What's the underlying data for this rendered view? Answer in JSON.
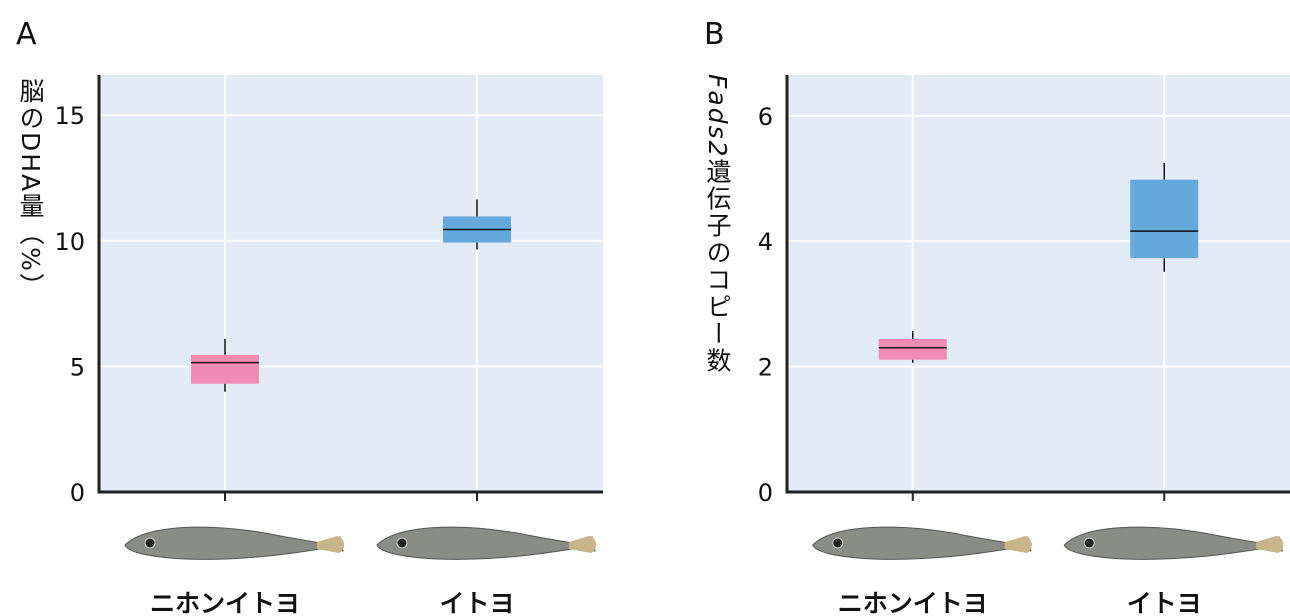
{
  "chart_data": [
    {
      "type": "box",
      "panel": "A",
      "y_label": "脳のDHA量（%）",
      "categories": [
        "ニホンイトヨ",
        "イトヨ"
      ],
      "colors": [
        "#f08cb4",
        "#64a8dc"
      ],
      "boxes": [
        {
          "min": 3.99,
          "q1": 4.31,
          "median": 5.15,
          "q3": 5.46,
          "max": 6.1
        },
        {
          "min": 9.65,
          "q1": 9.93,
          "median": 10.45,
          "q3": 10.97,
          "max": 11.65
        }
      ],
      "ylim": [
        0,
        16.6
      ],
      "yticks": [
        0,
        5,
        10,
        15
      ],
      "grid": true
    },
    {
      "type": "box",
      "panel": "B",
      "y_label_italic": "Fads2",
      "y_label": "遺伝子のコピー数",
      "categories": [
        "ニホンイトヨ",
        "イトヨ"
      ],
      "colors": [
        "#f08cb4",
        "#64a8dc"
      ],
      "boxes": [
        {
          "min": 2.06,
          "q1": 2.11,
          "median": 2.3,
          "q3": 2.44,
          "max": 2.57
        },
        {
          "min": 3.51,
          "q1": 3.73,
          "median": 4.16,
          "q3": 4.98,
          "max": 5.25
        }
      ],
      "ylim": [
        0,
        6.65
      ],
      "yticks": [
        0,
        2,
        4,
        6
      ],
      "grid": true
    }
  ]
}
